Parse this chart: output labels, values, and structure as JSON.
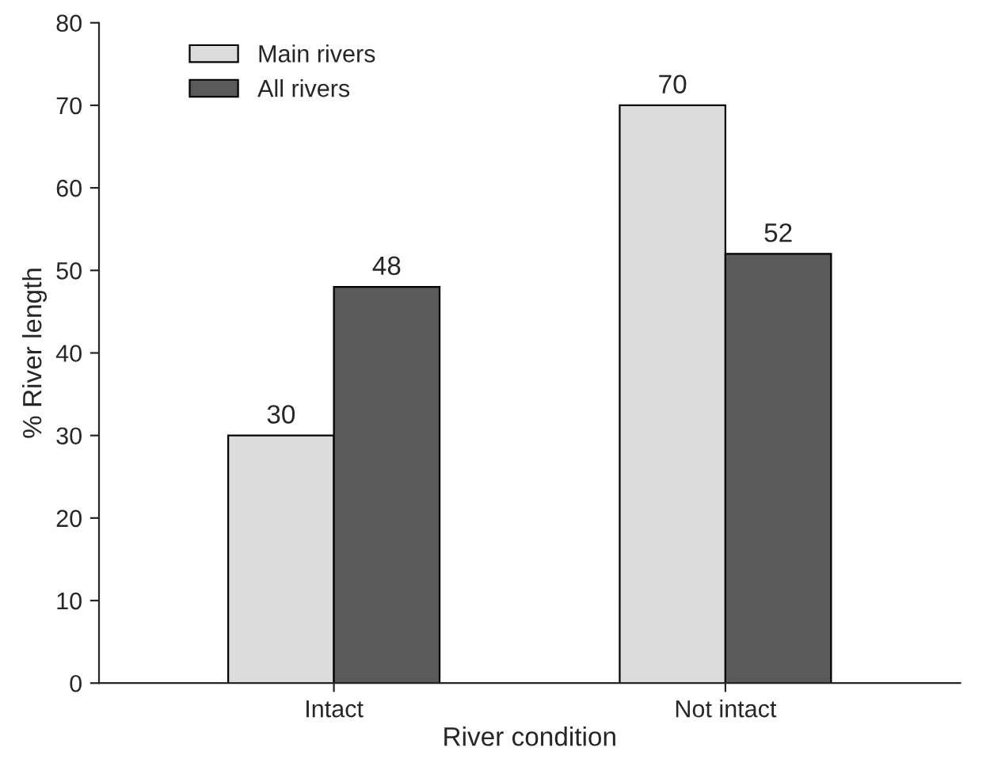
{
  "chart_data": {
    "type": "bar",
    "xlabel": "River condition",
    "ylabel": "% River length",
    "categories": [
      "Intact",
      "Not intact"
    ],
    "series": [
      {
        "name": "Main rivers",
        "color": "#dcdcdc",
        "values": [
          30,
          70
        ]
      },
      {
        "name": "All rivers",
        "color": "#5a5a5a",
        "values": [
          48,
          52
        ]
      }
    ],
    "ylim": [
      0,
      80
    ],
    "yticks": [
      0,
      10,
      20,
      30,
      40,
      50,
      60,
      70,
      80
    ],
    "data_labels": true,
    "legend": "top left",
    "grid": false
  }
}
